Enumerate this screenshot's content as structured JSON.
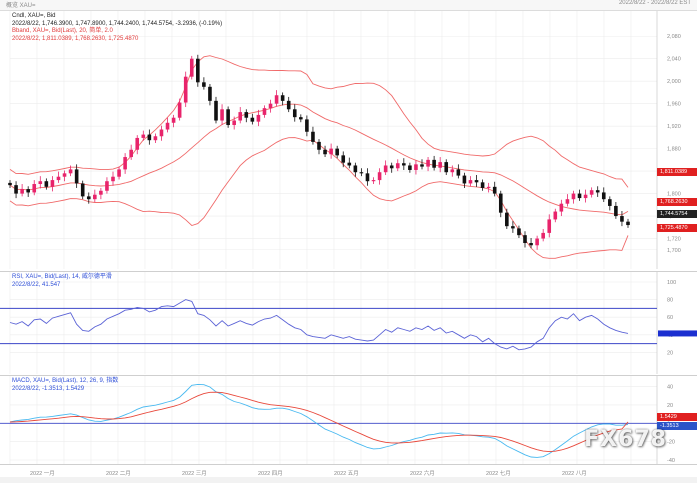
{
  "header": {
    "left_text": "概览 XAU=",
    "right_text": "2022/8/22 - 2022/8/22 EST"
  },
  "main_legend": {
    "line1": "Cndl, XAU=, Bid",
    "line2": "2022/8/22, 1,746.3900, 1,747.8900, 1,744.2400, 1,744.5754, -3.2936, (-0.19%)",
    "line3": "Bband, XAU=, Bid(Last), 20, 简单, 2.0",
    "line4": "2022/8/22, 1,811.0389, 1,768.2630, 1,725.4870"
  },
  "rsi_legend": {
    "line1": "RSI, XAU=, Bid(Last), 14, 威尔德平滑",
    "line2": "2022/8/22, 41.547"
  },
  "macd_legend": {
    "line1": "MACD, XAU=, Bid(Last), 12, 26, 9, 指数",
    "line2": "2022/8/22, -1.3513, 1.5429"
  },
  "price_tags": {
    "upper": "1,811.0389",
    "middle": "1,768.2630",
    "last": "1,744.5754",
    "lower": "1,725.4870"
  },
  "macd_tags": {
    "signal": "1.5429",
    "macd": "-1.3513"
  },
  "colors": {
    "up_candle": "#e8246b",
    "down_candle": "#111111",
    "band": "#f06a6a",
    "rsi_line": "#5b63d6",
    "macd_line": "#49b9f0",
    "signal_line": "#e8483b",
    "level_line": "#3b46c8",
    "tag_red": "#e02020",
    "tag_dark": "#222222",
    "tag_blue": "#2b54c8"
  },
  "watermark": "FX678",
  "chart_data": [
    {
      "type": "candlestick",
      "title": "Cndl, XAU=, Bid",
      "ylim": [
        1680,
        2100
      ],
      "y_ticks": [
        2080,
        2040,
        2000,
        1960,
        1920,
        1880,
        1840,
        1800,
        1760,
        1720,
        1700
      ],
      "x_labels": [
        "2022 一月",
        "2022 二月",
        "2022 三月",
        "2022 四月",
        "2022 五月",
        "2022 六月",
        "2022 七月",
        "2022 八月"
      ],
      "closes": [
        1815,
        1800,
        1808,
        1802,
        1817,
        1822,
        1812,
        1824,
        1830,
        1836,
        1843,
        1818,
        1795,
        1790,
        1798,
        1805,
        1822,
        1830,
        1843,
        1865,
        1878,
        1899,
        1905,
        1895,
        1902,
        1914,
        1926,
        1935,
        1962,
        2008,
        2040,
        1998,
        1990,
        1965,
        1930,
        1950,
        1922,
        1930,
        1945,
        1935,
        1928,
        1940,
        1952,
        1960,
        1975,
        1965,
        1950,
        1936,
        1932,
        1910,
        1892,
        1878,
        1870,
        1880,
        1868,
        1855,
        1850,
        1838,
        1836,
        1822,
        1824,
        1838,
        1850,
        1845,
        1854,
        1850,
        1842,
        1852,
        1848,
        1860,
        1846,
        1856,
        1838,
        1843,
        1832,
        1818,
        1824,
        1820,
        1810,
        1812,
        1800,
        1766,
        1742,
        1738,
        1726,
        1712,
        1708,
        1720,
        1730,
        1754,
        1768,
        1782,
        1790,
        1800,
        1792,
        1798,
        1806,
        1802,
        1790,
        1778,
        1760,
        1750,
        1744
      ],
      "bollinger": {
        "upper": 1811.0389,
        "middle": 1768.263,
        "lower": 1725.487
      },
      "last": {
        "open": 1746.39,
        "high": 1747.89,
        "low": 1744.24,
        "close": 1744.5754,
        "change": -3.2936,
        "change_pct": "-0.19%"
      }
    },
    {
      "type": "line",
      "title": "RSI, XAU=, Bid(Last), 14",
      "ylim": [
        0,
        100
      ],
      "levels": [
        70,
        30
      ],
      "values": [
        54,
        52,
        55,
        50,
        57,
        58,
        53,
        59,
        61,
        63,
        65,
        52,
        45,
        44,
        49,
        52,
        58,
        61,
        64,
        68,
        69,
        71,
        70,
        66,
        68,
        72,
        73,
        72,
        76,
        80,
        78,
        64,
        62,
        57,
        50,
        56,
        50,
        53,
        56,
        53,
        51,
        55,
        58,
        59,
        62,
        57,
        52,
        48,
        46,
        40,
        38,
        37,
        36,
        40,
        38,
        36,
        38,
        35,
        34,
        33,
        34,
        40,
        46,
        43,
        48,
        46,
        44,
        48,
        46,
        50,
        45,
        48,
        42,
        44,
        40,
        36,
        40,
        38,
        32,
        36,
        30,
        26,
        24,
        27,
        23,
        24,
        26,
        32,
        36,
        48,
        56,
        60,
        58,
        64,
        56,
        60,
        62,
        58,
        52,
        48,
        45,
        43,
        41.547
      ]
    },
    {
      "type": "line",
      "title": "MACD, XAU=, Bid(Last), 12, 26, 9",
      "ylim": [
        -40,
        45
      ],
      "series": [
        {
          "name": "MACD",
          "values": [
            1.5,
            2.8,
            3.6,
            4.2,
            5.5,
            6.6,
            6.8,
            7.5,
            8.5,
            9.4,
            10.4,
            8.9,
            6.2,
            3.6,
            2.3,
            2.1,
            3.4,
            4.7,
            6.6,
            9.3,
            11.9,
            15.2,
            17.8,
            18.7,
            19.7,
            21.3,
            23.2,
            25.0,
            28.4,
            34.6,
            41.4,
            42.4,
            42.1,
            39.5,
            34.3,
            31.5,
            27.0,
            23.8,
            22.1,
            19.7,
            17.0,
            15.6,
            15.3,
            15.4,
            16.5,
            16.5,
            15.2,
            12.9,
            10.7,
            7.1,
            2.8,
            -1.9,
            -6.3,
            -8.9,
            -11.8,
            -15.0,
            -17.7,
            -21.0,
            -23.5,
            -26.4,
            -27.9,
            -27.6,
            -25.8,
            -24.2,
            -21.8,
            -19.8,
            -18.5,
            -16.5,
            -15.1,
            -12.8,
            -12.0,
            -10.6,
            -10.8,
            -10.5,
            -11.0,
            -12.5,
            -13.0,
            -13.6,
            -14.7,
            -15.2,
            -16.5,
            -20.1,
            -24.6,
            -27.9,
            -31.1,
            -34.3,
            -36.7,
            -37.2,
            -36.4,
            -33.0,
            -28.7,
            -23.9,
            -19.2,
            -14.1,
            -10.6,
            -7.2,
            -3.9,
            -1.6,
            -0.7,
            -0.8,
            -2.1,
            -2.1,
            -1.3513
          ]
        },
        {
          "name": "Signal",
          "values": [
            1.4,
            1.6,
            2.0,
            2.4,
            3.0,
            3.7,
            4.3,
            4.9,
            5.6,
            6.4,
            7.2,
            7.5,
            7.2,
            6.5,
            5.7,
            5.0,
            4.7,
            4.7,
            5.1,
            5.9,
            7.1,
            8.8,
            10.6,
            12.3,
            13.8,
            15.3,
            16.9,
            18.5,
            20.5,
            23.3,
            26.9,
            30.0,
            32.4,
            33.8,
            33.9,
            33.4,
            32.1,
            30.4,
            28.7,
            26.9,
            24.9,
            23.0,
            21.5,
            20.3,
            19.6,
            19.0,
            18.2,
            17.1,
            15.8,
            14.0,
            11.8,
            9.1,
            6.1,
            3.1,
            0.1,
            -2.9,
            -5.9,
            -8.9,
            -11.8,
            -14.7,
            -17.4,
            -19.4,
            -20.7,
            -21.4,
            -21.5,
            -21.2,
            -20.7,
            -19.8,
            -18.9,
            -17.7,
            -16.5,
            -15.4,
            -14.5,
            -13.7,
            -13.2,
            -13.0,
            -13.0,
            -13.1,
            -13.4,
            -13.7,
            -14.3,
            -15.5,
            -17.3,
            -19.4,
            -21.7,
            -24.2,
            -26.7,
            -28.8,
            -30.3,
            -30.8,
            -30.4,
            -29.1,
            -27.1,
            -24.5,
            -21.7,
            -18.8,
            -15.8,
            -12.9,
            -10.5,
            -8.5,
            -7.2,
            -6.2,
            1.5429
          ]
        }
      ]
    }
  ]
}
